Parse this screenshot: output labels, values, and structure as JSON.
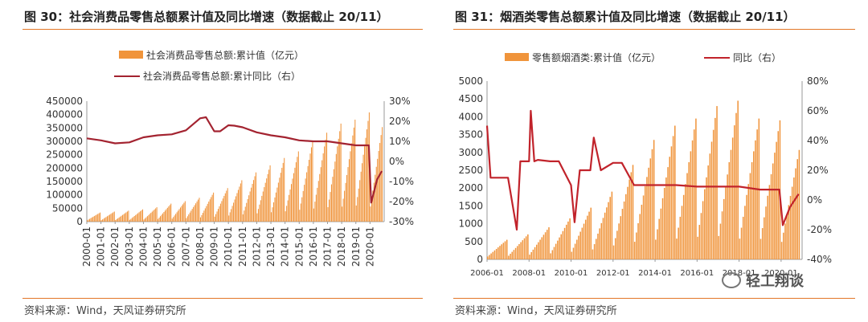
{
  "charts": [
    {
      "title": "图 30：社会消费品零售总额累计值及同比增速（数据截止 20/11）",
      "source": "资料来源：Wind，天风证券研究所",
      "watermark": "",
      "legend_labels": [
        "社会消费品零售总额:累计值（亿元）",
        "社会消费品零售总额:累计同比（右）"
      ]
    },
    {
      "title": "图 31：烟酒类零售总额累计值及同比增速（数据截止 20/11）",
      "source": "资料来源：Wind，天风证券研究所",
      "watermark": "轻工翔谈",
      "legend_labels": [
        "零售额烟酒类:累计值（亿元）",
        "同比（右）"
      ]
    }
  ],
  "chart_data": [
    {
      "type": "bar+line",
      "bar_color": "#f0943b",
      "line_color": "#a32330",
      "legend": [
        "社会消费品零售总额:累计值（亿元）",
        "社会消费品零售总额:累计同比（右）"
      ],
      "legend_placement": "top",
      "ylim_left": [
        0,
        450000
      ],
      "yticks_left": [
        0,
        50000,
        100000,
        150000,
        200000,
        250000,
        300000,
        350000,
        400000,
        450000
      ],
      "ylim_right": [
        -30,
        30
      ],
      "yticks_right": [
        "-30%",
        "-20%",
        "-10%",
        "0%",
        "10%",
        "20%",
        "30%"
      ],
      "x_tick_labels": [
        "2000-01",
        "2001-01",
        "2002-01",
        "2003-01",
        "2004-01",
        "2005-01",
        "2006-01",
        "2007-01",
        "2008-01",
        "2009-01",
        "2010-01",
        "2011-01",
        "2012-01",
        "2013-01",
        "2014-01",
        "2015-01",
        "2016-01",
        "2017-01",
        "2018-01",
        "2019-01",
        "2020-01"
      ],
      "series": [
        {
          "name": "社会消费品零售总额:累计值（亿元）",
          "kind": "bar",
          "axis": "left",
          "note": "cumulative year-to-date value, resets each January; annual peak (December) by year 2000-2019, 2020 peak through November",
          "annual_peak": [
            34000,
            37600,
            40900,
            45800,
            53900,
            67200,
            76400,
            89200,
            108500,
            125300,
            154600,
            183900,
            210300,
            237800,
            262400,
            300900,
            332300,
            366300,
            380900,
            408000,
            351000
          ]
        },
        {
          "name": "社会消费品零售总额:累计同比（右）",
          "kind": "line",
          "axis": "right",
          "x": [
            "2000-01",
            "2001-01",
            "2002-01",
            "2003-01",
            "2004-01",
            "2005-01",
            "2006-01",
            "2007-01",
            "2008-01",
            "2008-06",
            "2009-01",
            "2009-06",
            "2010-01",
            "2010-06",
            "2011-01",
            "2012-01",
            "2013-01",
            "2014-01",
            "2015-01",
            "2016-01",
            "2017-01",
            "2018-01",
            "2019-01",
            "2019-12",
            "2020-02",
            "2020-04",
            "2020-07",
            "2020-11"
          ],
          "y": [
            11.5,
            10.5,
            9.0,
            9.5,
            12.0,
            13.0,
            13.5,
            15.5,
            21.5,
            22.0,
            15.0,
            15.0,
            18.0,
            17.8,
            17.0,
            14.5,
            13.0,
            12.0,
            10.5,
            10.0,
            10.0,
            9.0,
            8.0,
            8.0,
            -20.5,
            -16.0,
            -9.0,
            -4.8
          ]
        }
      ]
    },
    {
      "type": "bar+line",
      "bar_color": "#f0943b",
      "line_color": "#c1232b",
      "legend": [
        "零售额烟酒类:累计值（亿元）",
        "同比（右）"
      ],
      "legend_placement": "top",
      "ylim_left": [
        0,
        5000
      ],
      "yticks_left": [
        0,
        500,
        1000,
        1500,
        2000,
        2500,
        3000,
        3500,
        4000,
        4500,
        5000
      ],
      "ylim_right": [
        -40,
        80
      ],
      "yticks_right": [
        "-40%",
        "-20%",
        "0%",
        "20%",
        "40%",
        "60%",
        "80%"
      ],
      "x_tick_labels": [
        "2006-01",
        "2008-01",
        "2010-01",
        "2012-01",
        "2014-01",
        "2016-01",
        "2018-01",
        "2020-01"
      ],
      "series": [
        {
          "name": "零售额烟酒类:累计值（亿元）",
          "kind": "bar",
          "axis": "left",
          "note": "cumulative year-to-date value, resets each January; annual peak by year 2006-2020",
          "annual_peak": [
            550,
            700,
            900,
            1150,
            1450,
            1900,
            2650,
            3350,
            3750,
            3950,
            4300,
            4450,
            3950,
            3900,
            3050
          ]
        },
        {
          "name": "同比（右）",
          "kind": "line",
          "axis": "right",
          "x": [
            "2006-01",
            "2006-03",
            "2007-01",
            "2007-06",
            "2007-08",
            "2008-01",
            "2008-02",
            "2008-04",
            "2008-06",
            "2009-01",
            "2009-03",
            "2009-06",
            "2010-01",
            "2010-03",
            "2010-06",
            "2010-12",
            "2011-02",
            "2011-06",
            "2012-01",
            "2012-06",
            "2013-01",
            "2013-06",
            "2014-01",
            "2015-01",
            "2016-01",
            "2017-01",
            "2018-01",
            "2019-01",
            "2019-12",
            "2020-02",
            "2020-06",
            "2020-11"
          ],
          "y": [
            50,
            15,
            15,
            -20,
            26,
            26,
            60,
            26,
            27,
            26,
            26,
            26,
            10,
            -15,
            20,
            20,
            42,
            20,
            25,
            25,
            10,
            10,
            10,
            10,
            9,
            9,
            9,
            7,
            7,
            -17,
            -5,
            4
          ]
        }
      ]
    }
  ]
}
